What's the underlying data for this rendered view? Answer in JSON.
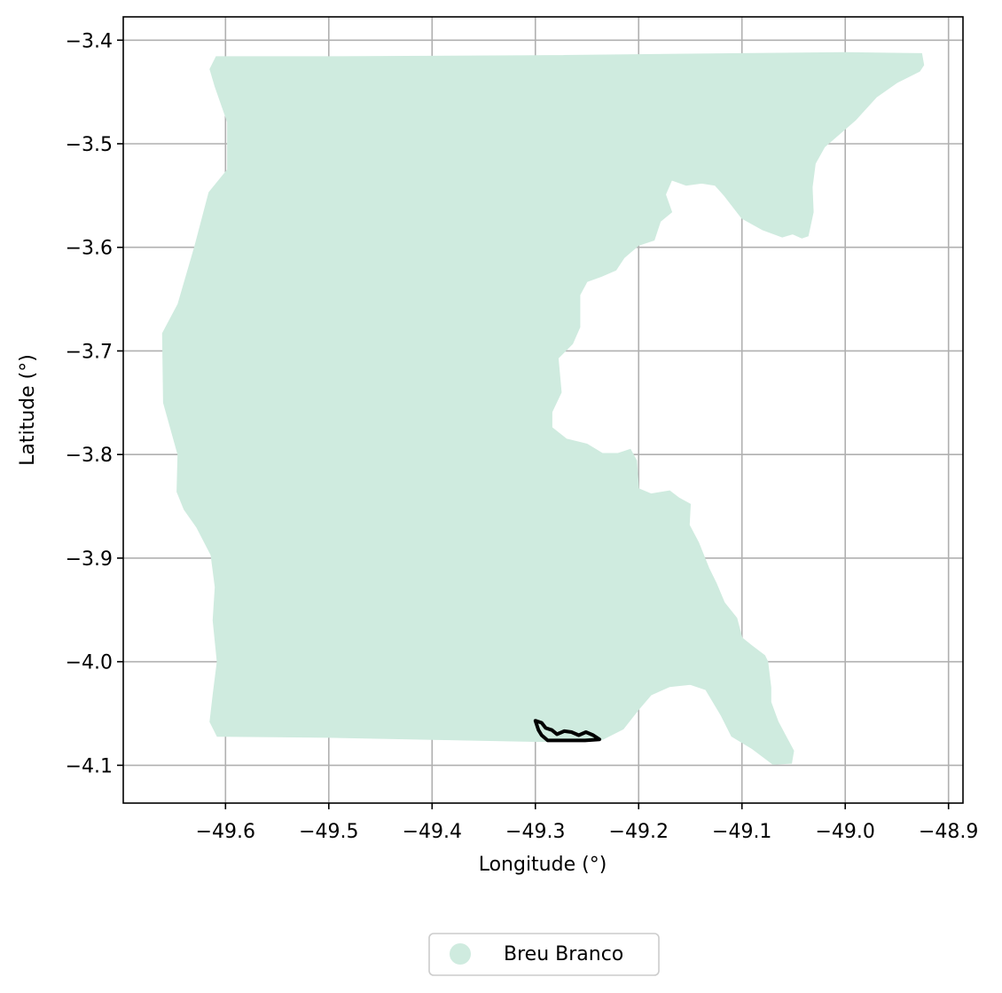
{
  "chart_data": {
    "type": "map",
    "xlabel": "Longitude (°)",
    "ylabel": "Latitude (°)",
    "xlim": [
      -49.699,
      -48.886
    ],
    "ylim": [
      -4.1365,
      -3.3775
    ],
    "xticks": [
      -49.6,
      -49.5,
      -49.4,
      -49.3,
      -49.2,
      -49.1,
      -49.0,
      -48.9
    ],
    "xtick_labels": [
      "−49.6",
      "−49.5",
      "−49.4",
      "−49.3",
      "−49.2",
      "−49.1",
      "−49.0",
      "−48.9"
    ],
    "yticks": [
      -3.4,
      -3.5,
      -3.6,
      -3.7,
      -3.8,
      -3.9,
      -4.0,
      -4.1
    ],
    "ytick_labels": [
      "−3.4",
      "−3.5",
      "−3.6",
      "−3.7",
      "−3.8",
      "−3.9",
      "−4.0",
      "−4.1"
    ],
    "grid": true,
    "legend_position": "bottom-center",
    "series": [
      {
        "name": "Breu Branco",
        "kind": "filled-polygon",
        "color": "#cfebdf",
        "coordinates": [
          [
            -49.609,
            -3.416
          ],
          [
            -49.5,
            -3.416
          ],
          [
            -49.3,
            -3.415
          ],
          [
            -49.1,
            -3.413
          ],
          [
            -49.0,
            -3.412
          ],
          [
            -48.926,
            -3.413
          ],
          [
            -48.924,
            -3.424
          ],
          [
            -48.928,
            -3.43
          ],
          [
            -48.95,
            -3.441
          ],
          [
            -48.97,
            -3.455
          ],
          [
            -48.99,
            -3.477
          ],
          [
            -49.02,
            -3.503
          ],
          [
            -49.029,
            -3.519
          ],
          [
            -49.032,
            -3.542
          ],
          [
            -49.031,
            -3.566
          ],
          [
            -49.036,
            -3.589
          ],
          [
            -49.042,
            -3.591
          ],
          [
            -49.051,
            -3.587
          ],
          [
            -49.061,
            -3.59
          ],
          [
            -49.08,
            -3.583
          ],
          [
            -49.1,
            -3.572
          ],
          [
            -49.117,
            -3.55
          ],
          [
            -49.126,
            -3.54
          ],
          [
            -49.139,
            -3.538
          ],
          [
            -49.154,
            -3.54
          ],
          [
            -49.168,
            -3.535
          ],
          [
            -49.174,
            -3.549
          ],
          [
            -49.168,
            -3.566
          ],
          [
            -49.179,
            -3.575
          ],
          [
            -49.185,
            -3.593
          ],
          [
            -49.2,
            -3.598
          ],
          [
            -49.214,
            -3.61
          ],
          [
            -49.222,
            -3.622
          ],
          [
            -49.236,
            -3.628
          ],
          [
            -49.25,
            -3.633
          ],
          [
            -49.257,
            -3.646
          ],
          [
            -49.257,
            -3.677
          ],
          [
            -49.264,
            -3.693
          ],
          [
            -49.278,
            -3.707
          ],
          [
            -49.275,
            -3.74
          ],
          [
            -49.284,
            -3.759
          ],
          [
            -49.284,
            -3.774
          ],
          [
            -49.27,
            -3.785
          ],
          [
            -49.25,
            -3.79
          ],
          [
            -49.235,
            -3.799
          ],
          [
            -49.22,
            -3.799
          ],
          [
            -49.208,
            -3.795
          ],
          [
            -49.202,
            -3.806
          ],
          [
            -49.2,
            -3.833
          ],
          [
            -49.188,
            -3.838
          ],
          [
            -49.17,
            -3.835
          ],
          [
            -49.161,
            -3.842
          ],
          [
            -49.15,
            -3.848
          ],
          [
            -49.151,
            -3.868
          ],
          [
            -49.142,
            -3.885
          ],
          [
            -49.132,
            -3.91
          ],
          [
            -49.125,
            -3.924
          ],
          [
            -49.117,
            -3.943
          ],
          [
            -49.105,
            -3.958
          ],
          [
            -49.1,
            -3.977
          ],
          [
            -49.09,
            -3.985
          ],
          [
            -49.078,
            -3.994
          ],
          [
            -49.075,
            -4.0
          ],
          [
            -49.072,
            -4.025
          ],
          [
            -49.072,
            -4.039
          ],
          [
            -49.065,
            -4.058
          ],
          [
            -49.057,
            -4.073
          ],
          [
            -49.05,
            -4.086
          ],
          [
            -49.052,
            -4.098
          ],
          [
            -49.07,
            -4.099
          ],
          [
            -49.09,
            -4.084
          ],
          [
            -49.11,
            -4.072
          ],
          [
            -49.12,
            -4.052
          ],
          [
            -49.135,
            -4.027
          ],
          [
            -49.15,
            -4.022
          ],
          [
            -49.17,
            -4.024
          ],
          [
            -49.188,
            -4.032
          ],
          [
            -49.2,
            -4.046
          ],
          [
            -49.215,
            -4.065
          ],
          [
            -49.235,
            -4.075
          ],
          [
            -49.27,
            -4.077
          ],
          [
            -49.3,
            -4.077
          ],
          [
            -49.4,
            -4.075
          ],
          [
            -49.5,
            -4.073
          ],
          [
            -49.608,
            -4.072
          ],
          [
            -49.615,
            -4.058
          ],
          [
            -49.612,
            -4.032
          ],
          [
            -49.608,
            -4.0
          ],
          [
            -49.612,
            -3.96
          ],
          [
            -49.61,
            -3.928
          ],
          [
            -49.614,
            -3.897
          ],
          [
            -49.628,
            -3.87
          ],
          [
            -49.64,
            -3.853
          ],
          [
            -49.647,
            -3.836
          ],
          [
            -49.646,
            -3.8
          ],
          [
            -49.66,
            -3.75
          ],
          [
            -49.661,
            -3.683
          ],
          [
            -49.646,
            -3.655
          ],
          [
            -49.63,
            -3.6
          ],
          [
            -49.616,
            -3.547
          ],
          [
            -49.598,
            -3.525
          ],
          [
            -49.598,
            -3.479
          ],
          [
            -49.61,
            -3.445
          ],
          [
            -49.615,
            -3.428
          ],
          [
            -49.609,
            -3.416
          ]
        ]
      },
      {
        "name": "",
        "kind": "outline-polygon",
        "color": "#000000",
        "coordinates": [
          [
            -49.3,
            -4.057
          ],
          [
            -49.294,
            -4.059
          ],
          [
            -49.29,
            -4.064
          ],
          [
            -49.284,
            -4.066
          ],
          [
            -49.279,
            -4.07
          ],
          [
            -49.272,
            -4.067
          ],
          [
            -49.265,
            -4.068
          ],
          [
            -49.258,
            -4.071
          ],
          [
            -49.251,
            -4.068
          ],
          [
            -49.244,
            -4.071
          ],
          [
            -49.238,
            -4.075
          ],
          [
            -49.252,
            -4.076
          ],
          [
            -49.27,
            -4.076
          ],
          [
            -49.288,
            -4.076
          ],
          [
            -49.294,
            -4.071
          ],
          [
            -49.297,
            -4.066
          ],
          [
            -49.3,
            -4.057
          ]
        ]
      }
    ]
  },
  "legend": {
    "label": "Breu Branco",
    "color": "#cfebdf"
  }
}
